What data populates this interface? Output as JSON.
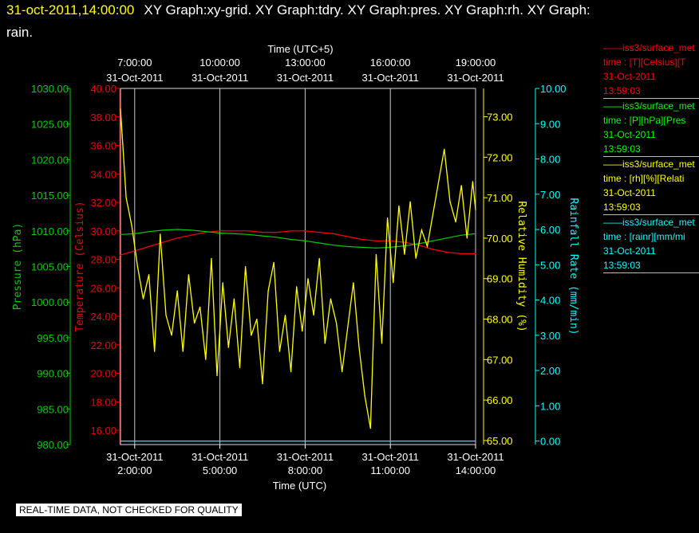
{
  "header": {
    "timestamp": "31-oct-2011,14:00:00",
    "title_line1": "XY Graph:xy-grid.  XY Graph:tdry.  XY Graph:pres.  XY Graph:rh.  XY Graph:",
    "title_line2": "rain."
  },
  "notice": "REAL-TIME DATA, NOT CHECKED FOR QUALITY",
  "legend": [
    {
      "color": "#ff0000",
      "line1": "——iss3/surface_met",
      "line2": "time : [T][Celsius][T",
      "line3": "31-Oct-2011",
      "line4": "13:59:03"
    },
    {
      "color": "#00ff00",
      "line1": "——iss3/surface_met",
      "line2": "time : [P][hPa][Pres",
      "line3": "31-Oct-2011",
      "line4": "13:59:03"
    },
    {
      "color": "#ffff00",
      "line1": "——iss3/surface_met",
      "line2": "time : [rh][%][Relati",
      "line3": "31-Oct-2011",
      "line4": "13:59:03"
    },
    {
      "color": "#00ffff",
      "line1": "——iss3/surface_met",
      "line2": "time : [rainr][mm/mi",
      "line3": "31-Oct-2011",
      "line4": "13:59:03"
    }
  ],
  "chart_data": {
    "type": "line",
    "grid": true,
    "x_bottom": {
      "label": "Time (UTC)",
      "range": [
        1.5,
        14.0
      ],
      "ticks": [
        {
          "value": 2,
          "date": "31-Oct-2011",
          "time": "2:00:00"
        },
        {
          "value": 5,
          "date": "31-Oct-2011",
          "time": "5:00:00"
        },
        {
          "value": 8,
          "date": "31-Oct-2011",
          "time": "8:00:00"
        },
        {
          "value": 11,
          "date": "31-Oct-2011",
          "time": "11:00:00"
        },
        {
          "value": 14,
          "date": "31-Oct-2011",
          "time": "14:00:00"
        }
      ]
    },
    "x_top": {
      "label": "Time (UTC+5)",
      "ticks": [
        {
          "value": 2,
          "time": "7:00:00",
          "date": "31-Oct-2011"
        },
        {
          "value": 5,
          "time": "10:00:00",
          "date": "31-Oct-2011"
        },
        {
          "value": 8,
          "time": "13:00:00",
          "date": "31-Oct-2011"
        },
        {
          "value": 11,
          "time": "16:00:00",
          "date": "31-Oct-2011"
        },
        {
          "value": 14,
          "time": "19:00:00",
          "date": "31-Oct-2011"
        }
      ]
    },
    "axes": [
      {
        "id": "pressure",
        "label": "Pressure (hPa)",
        "color": "#00cc00",
        "range": [
          980,
          1030
        ],
        "ticks": [
          "980.00",
          "985.00",
          "990.00",
          "995.00",
          "1000.00",
          "1005.00",
          "1010.00",
          "1015.00",
          "1020.00",
          "1025.00",
          "1030.00"
        ]
      },
      {
        "id": "temperature",
        "label": "Temperature (Celsius)",
        "color": "#ee0000",
        "range": [
          15,
          40
        ],
        "ticks": [
          "16.00",
          "18.00",
          "20.00",
          "22.00",
          "24.00",
          "26.00",
          "28.00",
          "30.00",
          "32.00",
          "34.00",
          "36.00",
          "38.00",
          "40.00"
        ]
      },
      {
        "id": "rh",
        "label": "Relative Humidity (%)",
        "color": "#ffff00",
        "range": [
          64.9,
          73.7
        ],
        "ticks": [
          "65.00",
          "66.00",
          "67.00",
          "68.00",
          "69.00",
          "70.00",
          "71.00",
          "72.00",
          "73.00"
        ]
      },
      {
        "id": "rain",
        "label": "Rainfall Rate (mm/min)",
        "color": "#00ffff",
        "range": [
          -0.1,
          10
        ],
        "ticks": [
          "0.00",
          "1.00",
          "2.00",
          "3.00",
          "4.00",
          "5.00",
          "6.00",
          "7.00",
          "8.00",
          "9.00",
          "10.00"
        ]
      }
    ],
    "series": [
      {
        "axis": "temperature",
        "color": "#ff0000",
        "x": [
          1.5,
          2.0,
          2.5,
          3.0,
          3.5,
          4.0,
          4.5,
          5.0,
          5.5,
          6.0,
          6.5,
          7.0,
          7.5,
          8.0,
          8.5,
          9.0,
          9.5,
          10.0,
          10.5,
          11.0,
          11.5,
          12.0,
          12.5,
          13.0,
          13.5,
          14.0
        ],
        "y": [
          28.3,
          28.6,
          28.9,
          29.2,
          29.5,
          29.7,
          29.9,
          30.0,
          30.0,
          30.0,
          29.9,
          29.9,
          30.0,
          30.0,
          29.9,
          29.8,
          29.6,
          29.4,
          29.3,
          29.3,
          29.2,
          29.0,
          28.7,
          28.5,
          28.4,
          28.4
        ]
      },
      {
        "axis": "pressure",
        "color": "#00cc00",
        "x": [
          1.5,
          2.0,
          2.5,
          3.0,
          3.5,
          4.0,
          4.5,
          5.0,
          5.5,
          6.0,
          6.5,
          7.0,
          7.5,
          8.0,
          8.5,
          9.0,
          9.5,
          10.0,
          10.5,
          11.0,
          11.5,
          12.0,
          12.5,
          13.0,
          13.5,
          14.0
        ],
        "y": [
          1009.5,
          1009.6,
          1009.9,
          1010.1,
          1010.2,
          1010.1,
          1009.9,
          1009.7,
          1009.6,
          1009.5,
          1009.3,
          1009.1,
          1008.8,
          1008.6,
          1008.3,
          1008.0,
          1007.8,
          1007.7,
          1007.6,
          1007.7,
          1007.9,
          1008.2,
          1008.6,
          1009.0,
          1009.4,
          1009.6
        ]
      },
      {
        "axis": "rh",
        "color": "#ffff00",
        "x": [
          1.5,
          1.7,
          1.9,
          2.1,
          2.3,
          2.5,
          2.7,
          2.9,
          3.1,
          3.3,
          3.5,
          3.7,
          3.9,
          4.1,
          4.3,
          4.5,
          4.7,
          4.9,
          5.1,
          5.3,
          5.5,
          5.7,
          5.9,
          6.1,
          6.3,
          6.5,
          6.7,
          6.9,
          7.1,
          7.3,
          7.5,
          7.7,
          7.9,
          8.1,
          8.3,
          8.5,
          8.7,
          8.9,
          9.1,
          9.3,
          9.5,
          9.7,
          9.9,
          10.1,
          10.3,
          10.5,
          10.7,
          10.9,
          11.1,
          11.3,
          11.5,
          11.7,
          11.9,
          12.1,
          12.3,
          12.5,
          12.7,
          12.9,
          13.1,
          13.3,
          13.5,
          13.7,
          13.9,
          14.0
        ],
        "y": [
          73.2,
          71.0,
          70.3,
          69.3,
          68.5,
          69.1,
          67.2,
          70.1,
          68.1,
          67.6,
          68.7,
          67.2,
          69.1,
          67.9,
          68.3,
          67.0,
          69.5,
          66.6,
          68.9,
          67.3,
          68.5,
          66.8,
          69.3,
          67.6,
          68.0,
          66.4,
          68.7,
          69.4,
          67.2,
          68.1,
          66.7,
          68.8,
          67.7,
          69.0,
          68.1,
          69.5,
          67.4,
          68.5,
          67.9,
          66.7,
          67.8,
          68.9,
          67.3,
          66.1,
          65.3,
          69.6,
          67.4,
          70.5,
          68.9,
          70.8,
          69.6,
          70.9,
          69.5,
          70.2,
          69.8,
          70.6,
          71.4,
          72.2,
          70.9,
          70.4,
          71.3,
          70.0,
          71.4,
          70.7
        ]
      },
      {
        "axis": "rain",
        "color": "#00ffff",
        "x": [
          1.5,
          14.0
        ],
        "y": [
          0.0,
          0.0
        ]
      }
    ]
  }
}
